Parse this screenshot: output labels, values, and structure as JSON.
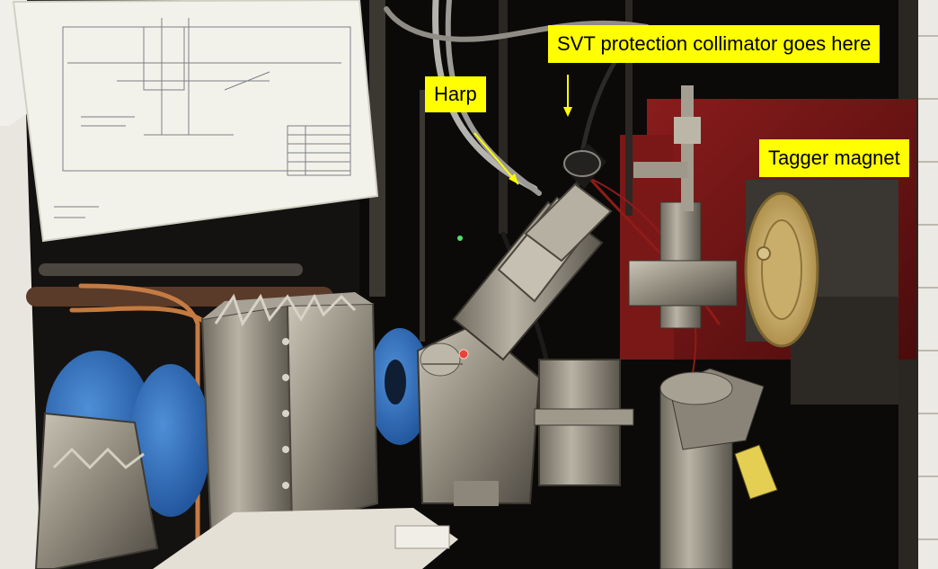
{
  "annotations": {
    "harp": "Harp",
    "svt_collimator": "SVT protection collimator goes here",
    "tagger_magnet": "Tagger magnet"
  },
  "colors": {
    "label_background": "#ffff00",
    "label_text": "#000000",
    "arrow": "#ffff00",
    "laser_dot": "#e8433a"
  }
}
